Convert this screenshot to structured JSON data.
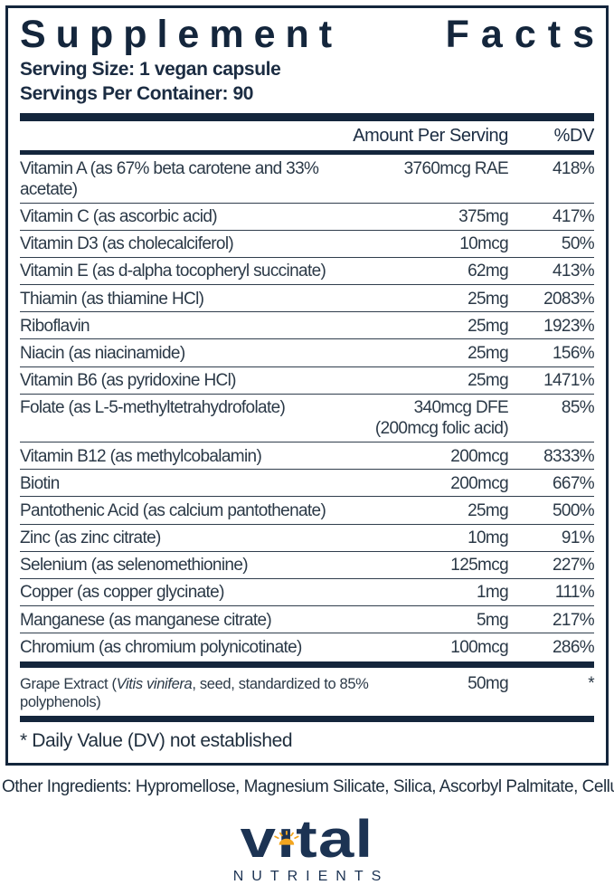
{
  "title": {
    "word1": "Supplement",
    "word2": "Facts"
  },
  "serving": {
    "size": "Serving Size: 1 vegan capsule",
    "per_container": "Servings Per Container: 90"
  },
  "columns": {
    "amount": "Amount Per Serving",
    "dv": "%DV"
  },
  "table": {
    "rows": [
      {
        "name": "Vitamin A (as 67% beta carotene and 33% acetate)",
        "amount": "3760mcg RAE",
        "dv": "418%"
      },
      {
        "name": "Vitamin C (as ascorbic acid)",
        "amount": "375mg",
        "dv": "417%"
      },
      {
        "name": "Vitamin D3 (as cholecalciferol)",
        "amount": "10mcg",
        "dv": "50%"
      },
      {
        "name": "Vitamin E (as d-alpha tocopheryl succinate)",
        "amount": "62mg",
        "dv": "413%"
      },
      {
        "name": "Thiamin (as thiamine HCl)",
        "amount": "25mg",
        "dv": "2083%"
      },
      {
        "name": "Riboflavin",
        "amount": "25mg",
        "dv": "1923%"
      },
      {
        "name": "Niacin (as niacinamide)",
        "amount": "25mg",
        "dv": "156%"
      },
      {
        "name": "Vitamin B6 (as pyridoxine HCl)",
        "amount": "25mg",
        "dv": "1471%"
      },
      {
        "name": "Folate (as L-5-methyltetrahydrofolate)",
        "amount": "340mcg DFE\n(200mcg folic acid)",
        "dv": "85%"
      },
      {
        "name": "Vitamin B12 (as methylcobalamin)",
        "amount": "200mcg",
        "dv": "8333%"
      },
      {
        "name": "Biotin",
        "amount": "200mcg",
        "dv": "667%"
      },
      {
        "name": "Pantothenic Acid (as calcium pantothenate)",
        "amount": "25mg",
        "dv": "500%"
      },
      {
        "name": "Zinc (as zinc citrate)",
        "amount": "10mg",
        "dv": "91%"
      },
      {
        "name": "Selenium (as selenomethionine)",
        "amount": "125mcg",
        "dv": "227%"
      },
      {
        "name": "Copper (as copper glycinate)",
        "amount": "1mg",
        "dv": "111%"
      },
      {
        "name": "Manganese (as manganese citrate)",
        "amount": "5mg",
        "dv": "217%"
      },
      {
        "name": "Chromium (as chromium polynicotinate)",
        "amount": "100mcg",
        "dv": "286%"
      }
    ],
    "special_row": {
      "name_parts": [
        {
          "text": "Grape Extract (",
          "italic": false
        },
        {
          "text": "Vitis vinifera",
          "italic": true
        },
        {
          "text": ", seed, standardized to 85% polyphenols)",
          "italic": false
        }
      ],
      "amount": "50mg",
      "dv": "*"
    },
    "footnote": "* Daily Value (DV) not established"
  },
  "other_ingredients": "Other Ingredients: Hypromellose, Magnesium Silicate, Silica, Ascorbyl Palmitate, Cellulose.",
  "logo": {
    "brand": "vital",
    "sub": "NUTRIENTS"
  },
  "colors": {
    "navy": "#14263c",
    "logo_navy": "#1c3353",
    "gold": "#f2a51f"
  }
}
